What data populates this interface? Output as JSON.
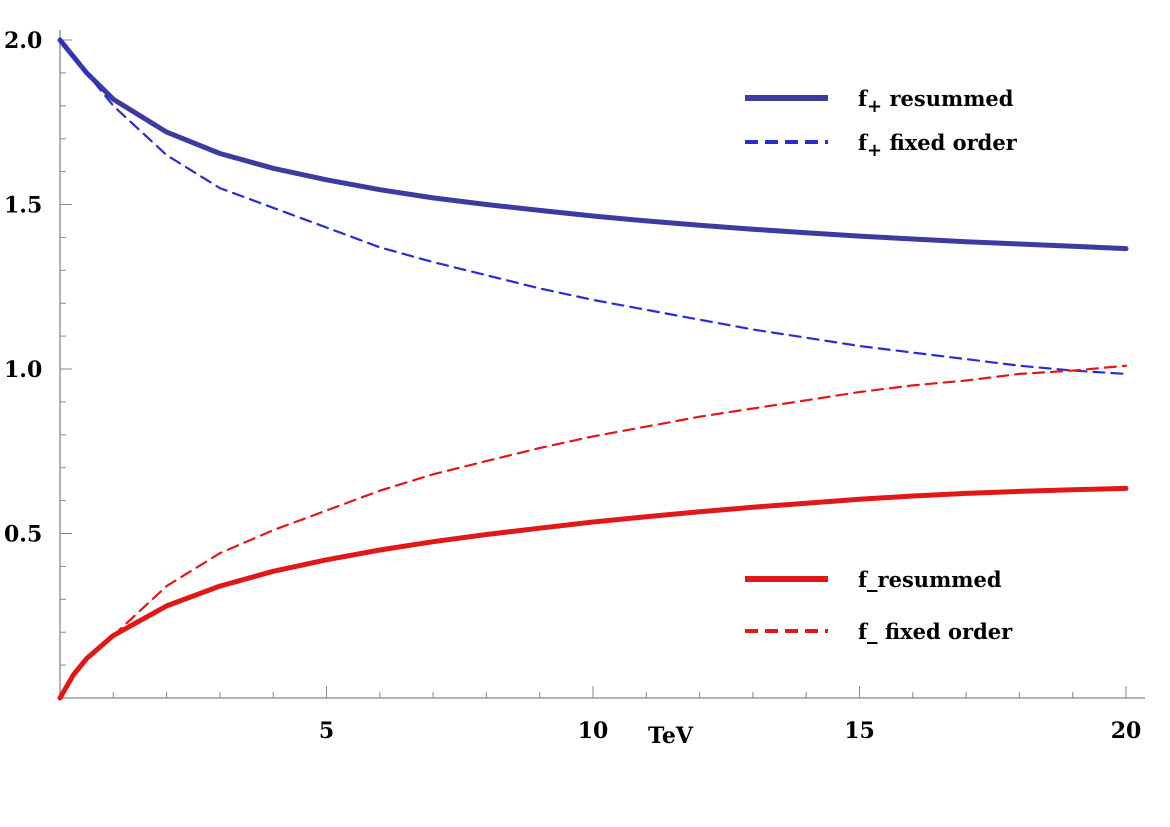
{
  "chart_data": {
    "type": "line",
    "title": "",
    "xlabel": "TeV",
    "ylabel": "",
    "xlim": [
      0,
      20
    ],
    "ylim": [
      0,
      2.0
    ],
    "x_ticks": [
      5,
      10,
      15,
      20
    ],
    "x_tick_labels": [
      "5",
      "10",
      "15",
      "20"
    ],
    "y_ticks": [
      0.5,
      1.0,
      1.5,
      2.0
    ],
    "y_tick_labels": [
      "0.5",
      "1.0",
      "1.5",
      "2.0"
    ],
    "grid": false,
    "series": [
      {
        "name": "f+ resummed",
        "label_main": "f",
        "label_sub": "+",
        "label_rest": " resummed",
        "color": "#3b3ba0",
        "style": "solid",
        "x": [
          0,
          0.5,
          1,
          2,
          3,
          4,
          5,
          6,
          7,
          8,
          9,
          10,
          11,
          12,
          13,
          14,
          15,
          16,
          17,
          18,
          19,
          20
        ],
        "y": [
          2.0,
          1.9,
          1.82,
          1.72,
          1.655,
          1.61,
          1.575,
          1.545,
          1.52,
          1.5,
          1.482,
          1.465,
          1.45,
          1.437,
          1.425,
          1.414,
          1.404,
          1.395,
          1.387,
          1.38,
          1.373,
          1.366
        ]
      },
      {
        "name": "f+ fixed order",
        "label_main": "f",
        "label_sub": "+",
        "label_rest": " fixed  order",
        "color": "#2b2bd6",
        "style": "dashed",
        "x": [
          0,
          0.5,
          1,
          2,
          3,
          4,
          5,
          6,
          7,
          8,
          9,
          10,
          11,
          12,
          13,
          14,
          15,
          16,
          17,
          18,
          19,
          20
        ],
        "y": [
          2.0,
          1.9,
          1.8,
          1.65,
          1.55,
          1.49,
          1.43,
          1.37,
          1.325,
          1.285,
          1.245,
          1.21,
          1.18,
          1.15,
          1.12,
          1.095,
          1.07,
          1.05,
          1.03,
          1.01,
          0.995,
          0.985
        ]
      },
      {
        "name": "f_ resummed",
        "label_main": "f_",
        "label_sub": "",
        "label_rest": "resummed",
        "color": "#e01818",
        "style": "solid",
        "x": [
          0,
          0.25,
          0.5,
          1,
          2,
          3,
          4,
          5,
          6,
          7,
          8,
          9,
          10,
          11,
          12,
          13,
          14,
          15,
          16,
          17,
          18,
          19,
          20
        ],
        "y": [
          0.0,
          0.07,
          0.12,
          0.19,
          0.28,
          0.34,
          0.385,
          0.42,
          0.45,
          0.475,
          0.497,
          0.516,
          0.535,
          0.551,
          0.566,
          0.58,
          0.592,
          0.604,
          0.614,
          0.622,
          0.628,
          0.633,
          0.637
        ]
      },
      {
        "name": "f_ fixed order",
        "label_main": "f_",
        "label_sub": "",
        "label_rest": "  fixed order",
        "color": "#e01818",
        "style": "dashed",
        "x": [
          1,
          2,
          3,
          4,
          5,
          6,
          7,
          8,
          9,
          10,
          11,
          12,
          13,
          14,
          15,
          16,
          17,
          18,
          19,
          20
        ],
        "y": [
          0.19,
          0.34,
          0.44,
          0.51,
          0.57,
          0.63,
          0.68,
          0.72,
          0.76,
          0.795,
          0.825,
          0.855,
          0.88,
          0.905,
          0.93,
          0.95,
          0.965,
          0.985,
          0.995,
          1.01
        ]
      }
    ],
    "legends": [
      {
        "position": "top-right",
        "series": [
          0,
          1
        ]
      },
      {
        "position": "bottom-right",
        "series": [
          2,
          3
        ]
      }
    ]
  }
}
